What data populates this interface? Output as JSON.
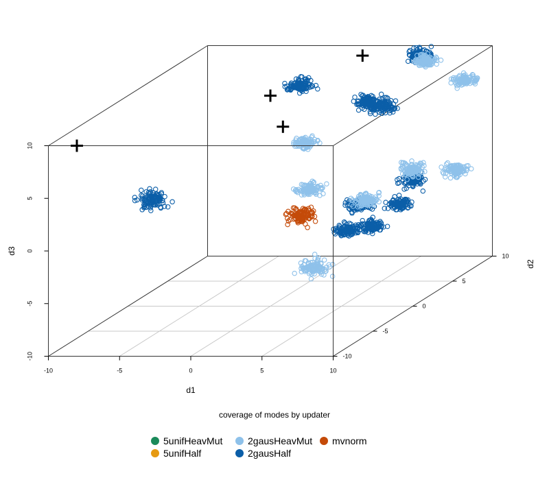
{
  "chart_data": {
    "type": "scatter",
    "projection": "3d-perspective",
    "xlabel": "d1",
    "ylabel": "d2",
    "zlabel": "d3",
    "xlim": [
      -10,
      10
    ],
    "ylim": [
      -10,
      10
    ],
    "zlim": [
      -10,
      10
    ],
    "x_ticks": [
      "-10",
      "-5",
      "0",
      "5",
      "10"
    ],
    "y_ticks": [
      "-10",
      "-5",
      "0",
      "5",
      "10"
    ],
    "z_ticks": [
      "-10",
      "-5",
      "0",
      "5",
      "10"
    ],
    "grid_on_floor": true,
    "caption": "coverage of modes by updater",
    "legend_position": "bottom",
    "legend": [
      {
        "name": "5unifHeavMut",
        "color": "#1b8a5a"
      },
      {
        "name": "5unifHalf",
        "color": "#e69a12"
      },
      {
        "name": "2gausHeavMut",
        "color": "#8ec1ea"
      },
      {
        "name": "2gausHalf",
        "color": "#0b5ea8"
      },
      {
        "name": "mvnorm",
        "color": "#c44a08"
      }
    ],
    "true_modes": {
      "marker": "plus",
      "color": "#000000",
      "points": [
        {
          "x": -8,
          "y": -10,
          "z": 10
        },
        {
          "x": 2,
          "y": 8,
          "z": 10
        },
        {
          "x": 0,
          "y": 0,
          "z": 10
        },
        {
          "x": 2,
          "y": -2,
          "z": 8
        }
      ]
    },
    "clusters": [
      {
        "series": "2gausHalf",
        "x": -5,
        "y": -6,
        "z": 3,
        "spread": 0.6
      },
      {
        "series": "2gausHalf",
        "x": 1,
        "y": 2,
        "z": 10,
        "spread": 0.5
      },
      {
        "series": "2gausHalf",
        "x": 6,
        "y": 8,
        "z": 10,
        "spread": 0.5
      },
      {
        "series": "2gausHalf",
        "x": 9,
        "y": -2,
        "z": 10,
        "spread": 0.5
      },
      {
        "series": "2gausHalf",
        "x": 4,
        "y": 5,
        "z": 7,
        "spread": 0.5
      },
      {
        "series": "2gausHalf",
        "x": 10,
        "y": 0,
        "z": 2,
        "spread": 0.5
      },
      {
        "series": "2gausHalf",
        "x": 10,
        "y": -5,
        "z": 0,
        "spread": 0.45
      },
      {
        "series": "2gausHalf",
        "x": 9,
        "y": -5,
        "z": 2,
        "spread": 0.45
      },
      {
        "series": "2gausHalf",
        "x": 13,
        "y": -7,
        "z": 3,
        "spread": 0.45
      },
      {
        "series": "2gausHalf",
        "x": 11,
        "y": -10,
        "z": 2,
        "spread": 0.45
      },
      {
        "series": "2gausHeavMut",
        "x": 3,
        "y": -1,
        "z": 6,
        "spread": 0.45
      },
      {
        "series": "2gausHeavMut",
        "x": 5,
        "y": -4,
        "z": 3,
        "spread": 0.45
      },
      {
        "series": "2gausHeavMut",
        "x": 7,
        "y": -7,
        "z": -3,
        "spread": 0.55
      },
      {
        "series": "2gausHeavMut",
        "x": 9,
        "y": -4,
        "z": 2,
        "spread": 0.5
      },
      {
        "series": "2gausHeavMut",
        "x": 10,
        "y": 0,
        "z": 3,
        "spread": 0.5
      },
      {
        "series": "2gausHeavMut",
        "x": 12,
        "y": 2,
        "z": 2,
        "spread": 0.45
      },
      {
        "series": "2gausHeavMut",
        "x": 12,
        "y": 3,
        "z": 10,
        "spread": 0.45
      },
      {
        "series": "2gausHeavMut",
        "x": 7,
        "y": 7,
        "z": 10,
        "spread": 0.4
      },
      {
        "series": "mvnorm",
        "x": 5,
        "y": -5,
        "z": 1,
        "spread": 0.55
      }
    ]
  }
}
